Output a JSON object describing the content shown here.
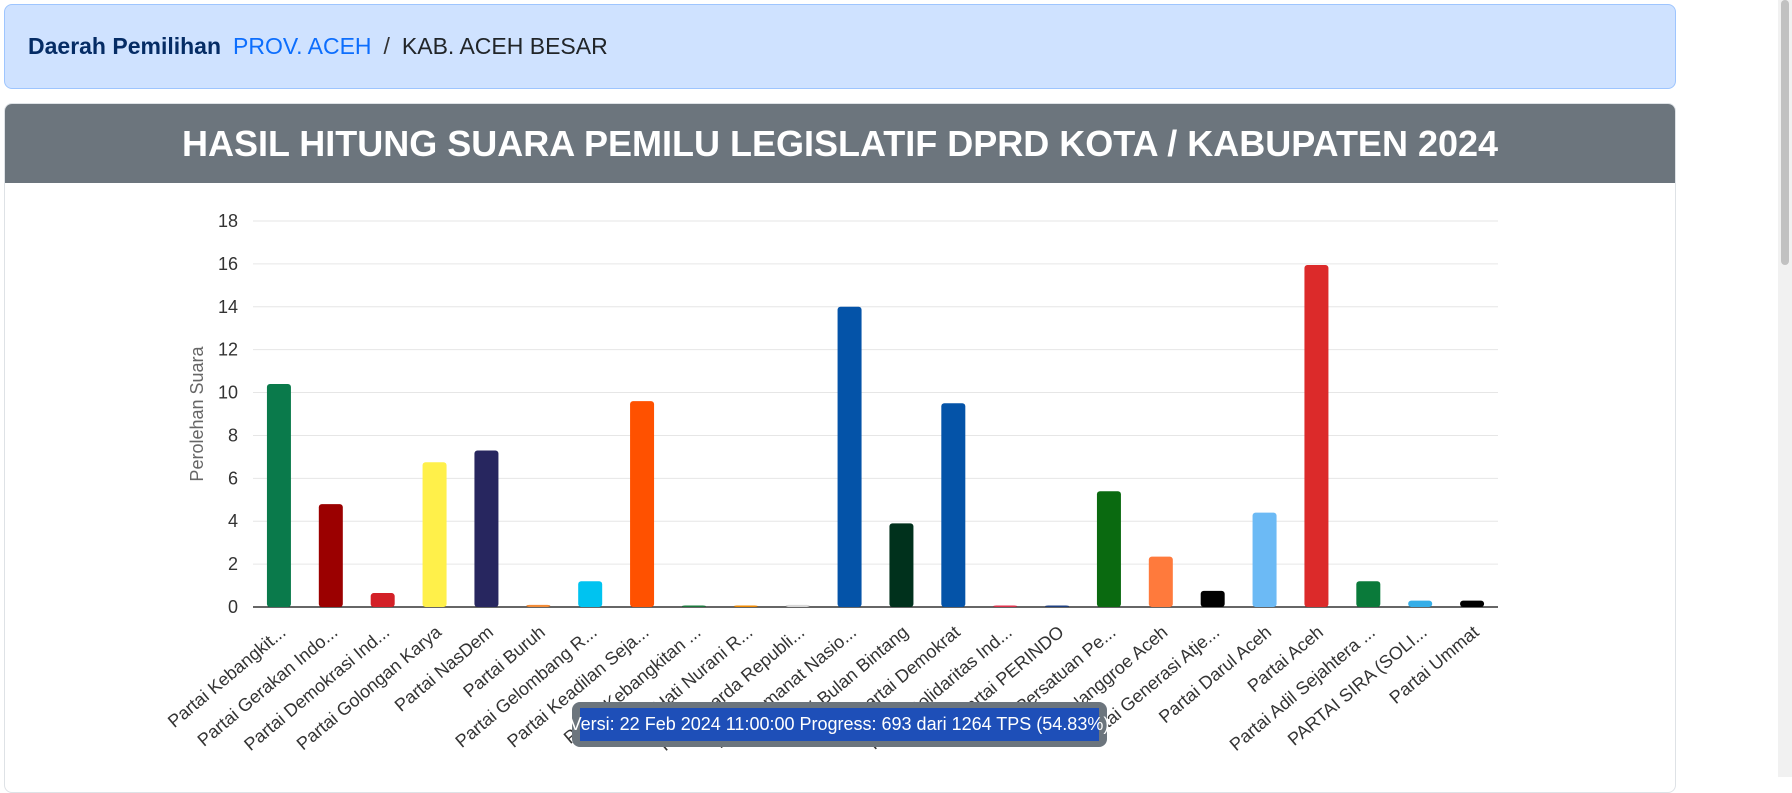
{
  "breadcrumb": {
    "label": "Daerah Pemilihan",
    "province": "PROV. ACEH",
    "separator": "/",
    "regency": "KAB. ACEH BESAR"
  },
  "header": {
    "title": "HASIL HITUNG SUARA PEMILU LEGISLATIF DPRD KOTA / KABUPATEN 2024"
  },
  "progress": {
    "text": "Versi: 22 Feb 2024 11:00:00 Progress: 693 dari 1264 TPS (54.83%)"
  },
  "chart_data": {
    "type": "bar",
    "ylabel": "Perolehan Suara",
    "ylim": [
      0,
      18
    ],
    "yticks": [
      0,
      2,
      4,
      6,
      8,
      10,
      12,
      14,
      16,
      18
    ],
    "grid": true,
    "categories": [
      "Partai Kebangkit...",
      "Partai Gerakan Indo...",
      "Partai Demokrasi Ind...",
      "Partai Golongan Karya",
      "Partai NasDem",
      "Partai Buruh",
      "Partai Gelombang R...",
      "Partai Keadilan Seja...",
      "Partai Kebangkitan ...",
      "Partai Hati Nurani R...",
      "Partai Garda Republi...",
      "Partai Amanat Nasio...",
      "Partai Bulan Bintang",
      "Partai Demokrat",
      "Partai Solidaritas Ind...",
      "Partai PERINDO",
      "Partai Persatuan Pe...",
      "Partai Nanggroe Aceh",
      "Partai Generasi Atje...",
      "Partai Darul Aceh",
      "Partai Aceh",
      "Partai Adil Sejahtera ...",
      "PARTAI SIRA (SOLI...",
      "Partai Ummat"
    ],
    "values": [
      10.4,
      4.8,
      0.65,
      6.75,
      7.3,
      0.1,
      1.2,
      9.6,
      0.02,
      0.02,
      0.1,
      14.0,
      3.9,
      9.5,
      0.02,
      0.02,
      5.4,
      2.35,
      0.75,
      4.4,
      15.95,
      1.2,
      0.3,
      0.3
    ],
    "colors": [
      "#0a7a4b",
      "#9b0000",
      "#d32027",
      "#fff04a",
      "#27265f",
      "#f28c38",
      "#00c3f0",
      "#ff5100",
      "#1a7a3c",
      "#f08a00",
      "#d8d8d8",
      "#0453a8",
      "#00311c",
      "#0453a8",
      "#e0314b",
      "#1d3f82",
      "#0a6a10",
      "#ff7a3c",
      "#000000",
      "#6cbaf5",
      "#dc2a2a",
      "#0a7a3a",
      "#35aee8",
      "#000000"
    ]
  }
}
